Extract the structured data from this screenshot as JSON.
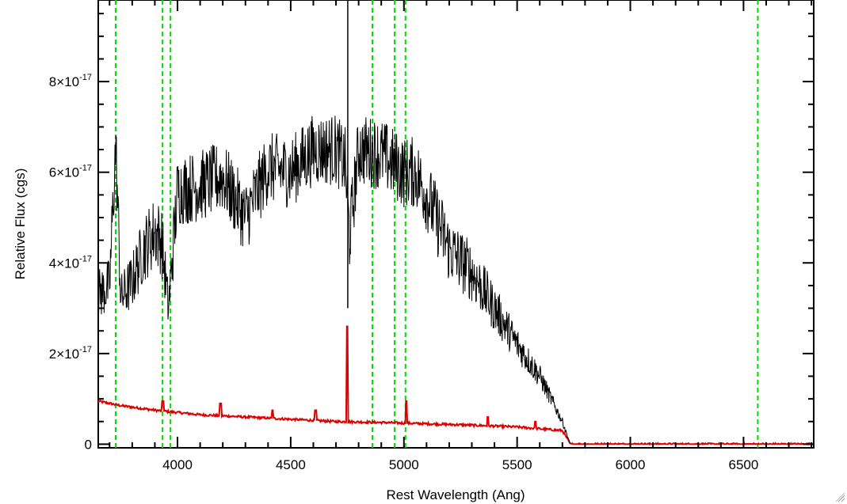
{
  "chart_data": {
    "type": "line",
    "xlabel": "Rest Wavelength (Ang)",
    "ylabel": "Relative Flux (cgs)",
    "xlim": [
      3650,
      6810
    ],
    "ylim": [
      -0.08,
      9.8
    ],
    "y_unit_factor": "1e-17",
    "x_ticks": [
      4000,
      4500,
      5000,
      5500,
      6000,
      6500
    ],
    "x_tick_labels": [
      "4000",
      "4500",
      "5000",
      "5500",
      "6000",
      "6500"
    ],
    "y_ticks": [
      {
        "value": 0,
        "mantissa": "0",
        "exp": ""
      },
      {
        "value": 2,
        "mantissa": "2×10",
        "exp": "-17"
      },
      {
        "value": 4,
        "mantissa": "4×10",
        "exp": "-17"
      },
      {
        "value": 6,
        "mantissa": "6×10",
        "exp": "-17"
      },
      {
        "value": 8,
        "mantissa": "8×10",
        "exp": "-17"
      }
    ],
    "grid": false,
    "colors": {
      "spectrum": "#000000",
      "error": "#dd0000",
      "lines": "#00dd00"
    },
    "emission_lines_x": [
      3727,
      3934,
      3969,
      4861,
      4959,
      5007,
      6563
    ],
    "spectrum_envelope": [
      [
        3650,
        3.3
      ],
      [
        3700,
        3.5
      ],
      [
        3727,
        6.6
      ],
      [
        3750,
        3.2
      ],
      [
        3800,
        3.6
      ],
      [
        3850,
        4.3
      ],
      [
        3900,
        4.7
      ],
      [
        3930,
        4.5
      ],
      [
        3960,
        3.0
      ],
      [
        4000,
        5.6
      ],
      [
        4100,
        5.7
      ],
      [
        4200,
        5.9
      ],
      [
        4300,
        5.0
      ],
      [
        4400,
        6.1
      ],
      [
        4500,
        6.0
      ],
      [
        4600,
        6.5
      ],
      [
        4700,
        6.5
      ],
      [
        4740,
        6.2
      ],
      [
        4760,
        4.6
      ],
      [
        4800,
        6.5
      ],
      [
        4900,
        6.4
      ],
      [
        5000,
        6.0
      ],
      [
        5050,
        6.0
      ],
      [
        5100,
        5.5
      ],
      [
        5200,
        4.3
      ],
      [
        5300,
        3.8
      ],
      [
        5400,
        3.0
      ],
      [
        5500,
        2.2
      ],
      [
        5600,
        1.5
      ],
      [
        5700,
        0.5
      ],
      [
        5735,
        0.0
      ],
      [
        6810,
        0.0
      ]
    ],
    "error_envelope": [
      [
        3650,
        0.95
      ],
      [
        3750,
        0.85
      ],
      [
        3900,
        0.75
      ],
      [
        4100,
        0.65
      ],
      [
        4300,
        0.6
      ],
      [
        4500,
        0.55
      ],
      [
        4700,
        0.5
      ],
      [
        4900,
        0.48
      ],
      [
        5100,
        0.45
      ],
      [
        5300,
        0.42
      ],
      [
        5500,
        0.38
      ],
      [
        5700,
        0.3
      ],
      [
        5735,
        0.0
      ],
      [
        6810,
        0.0
      ]
    ],
    "error_spikes": [
      [
        3935,
        0.95
      ],
      [
        4190,
        0.9
      ],
      [
        4420,
        0.75
      ],
      [
        4610,
        0.75
      ],
      [
        4750,
        2.6
      ],
      [
        5010,
        0.95
      ],
      [
        5370,
        0.6
      ],
      [
        5580,
        0.5
      ]
    ]
  }
}
